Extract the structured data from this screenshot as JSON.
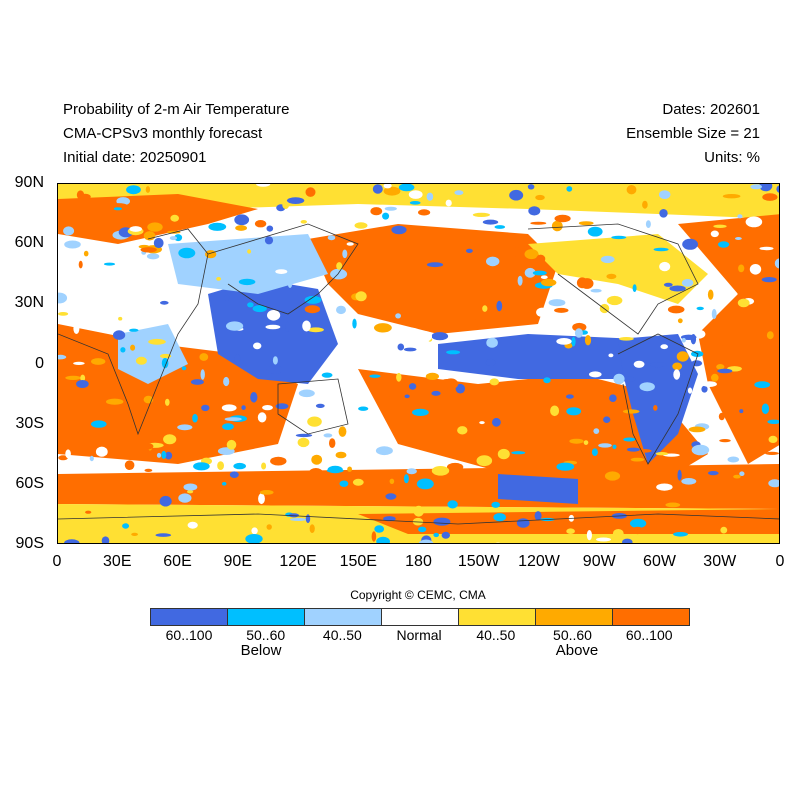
{
  "title": {
    "left": [
      "Probability of 2-m Air Temperature",
      "CMA-CPSv3 monthly forecast",
      "Initial date: 20250901"
    ],
    "right": [
      "Dates: 202601",
      "Ensemble Size = 21",
      "Units: %"
    ]
  },
  "axes": {
    "lat_labels": [
      "90N",
      "60N",
      "30N",
      "0",
      "30S",
      "60S",
      "90S"
    ],
    "lon_labels": [
      "0",
      "30E",
      "60E",
      "90E",
      "120E",
      "150E",
      "180",
      "150W",
      "120W",
      "90W",
      "60W",
      "30W",
      "0"
    ]
  },
  "copyright": "Copyright © CEMC, CMA",
  "legend": {
    "bins": [
      {
        "label": "60..100",
        "color": "#4169e1"
      },
      {
        "label": "50..60",
        "color": "#00bfff"
      },
      {
        "label": "40..50",
        "color": "#a0d2ff"
      },
      {
        "label": "Normal",
        "color": "#ffffff"
      },
      {
        "label": "40..50",
        "color": "#ffe033"
      },
      {
        "label": "50..60",
        "color": "#ffaa00"
      },
      {
        "label": "60..100",
        "color": "#ff6e00"
      }
    ],
    "below_label": "Below",
    "above_label": "Above"
  }
}
